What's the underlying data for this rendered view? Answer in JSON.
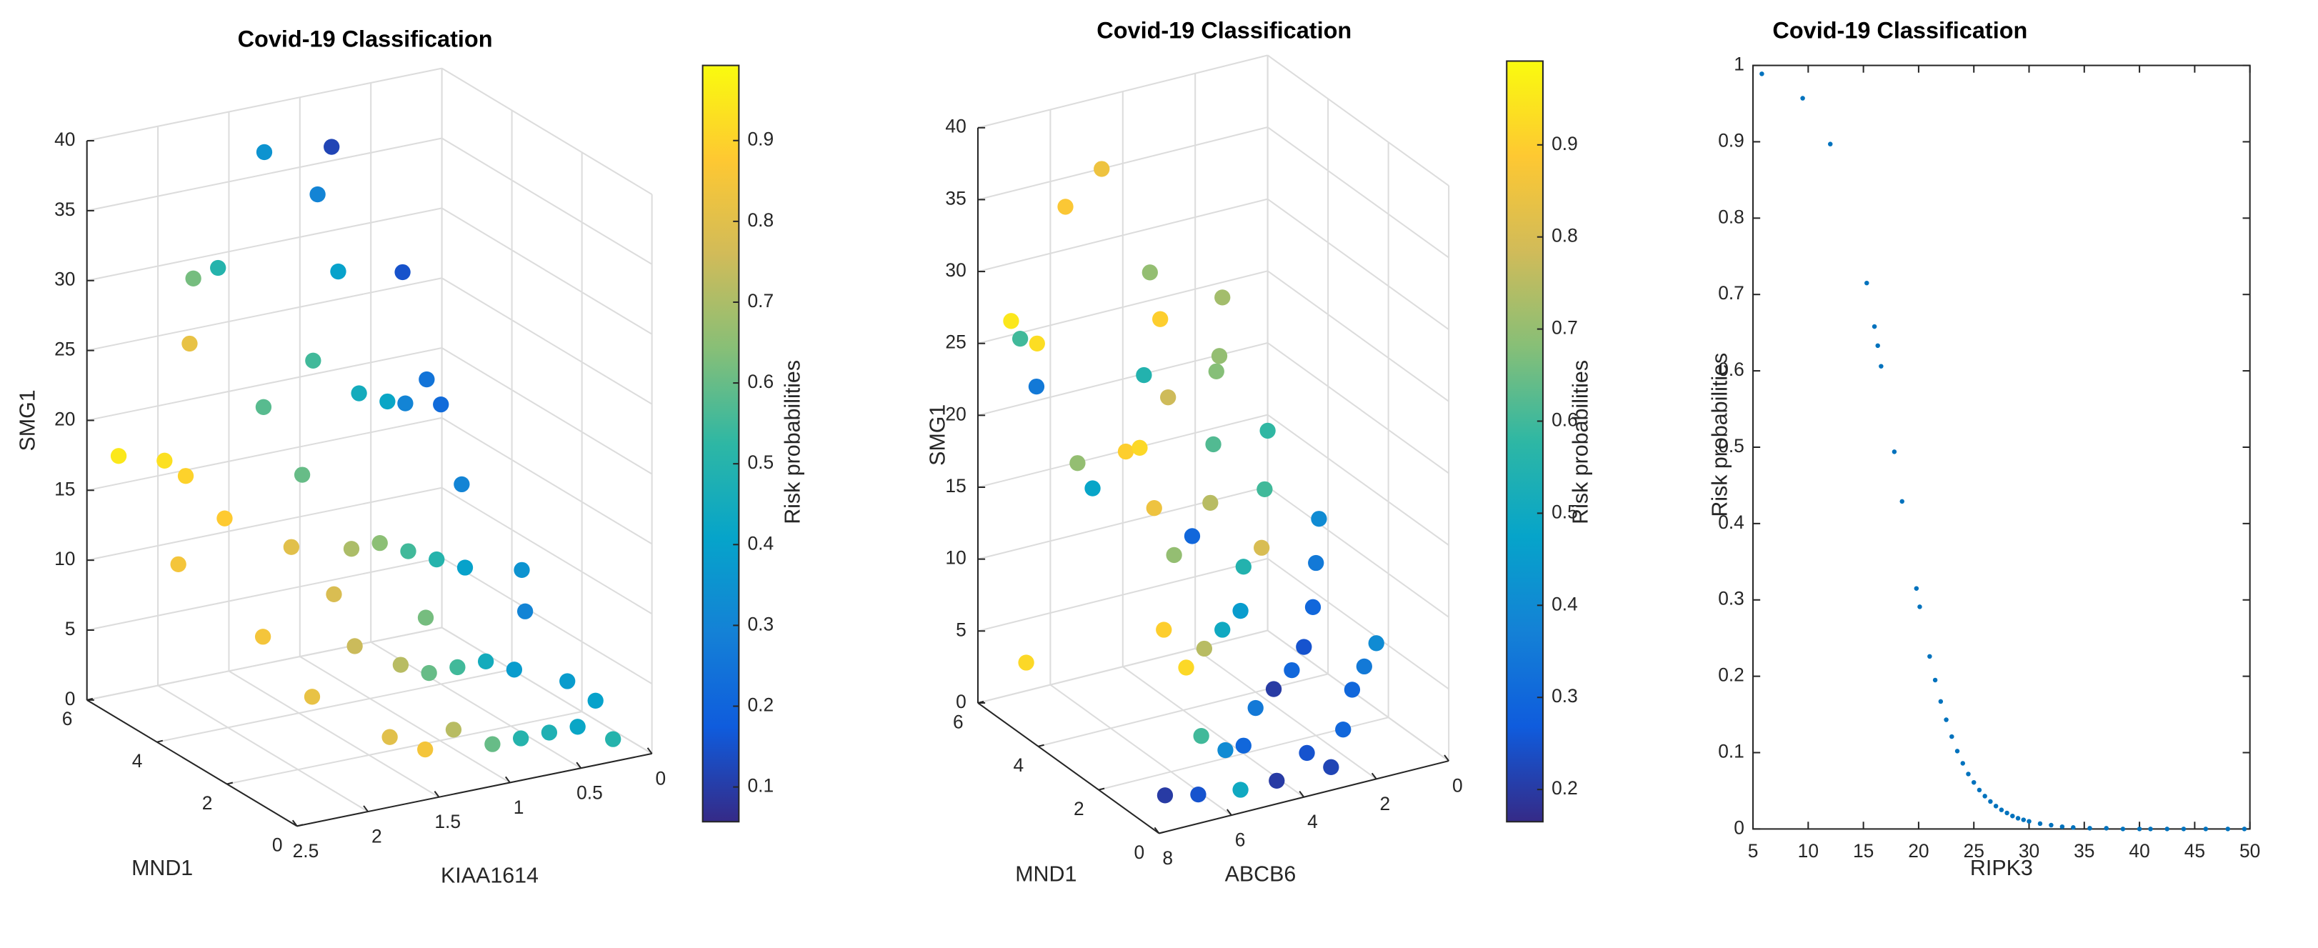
{
  "chart_data": [
    {
      "type": "scatter3d",
      "title": "Covid-19 Classification",
      "xlabel": "KIAA1614",
      "ylabel": "MND1",
      "zlabel": "SMG1",
      "colorbar_label": "Risk probabilities",
      "colormap": "parula",
      "grid": true,
      "x": [
        2.4,
        2.2,
        2.1,
        1.9,
        1.8,
        1.7,
        1.3,
        0.9,
        0.9,
        1.1,
        1.4,
        1.2,
        1.0,
        0.8,
        0.6,
        0.4,
        0.5,
        0.6,
        1.6,
        1.8,
        1.5,
        1.3,
        1.1,
        0.9,
        0.7,
        2.0,
        1.9,
        1.6,
        1.4,
        1.2,
        1.0,
        0.8,
        0.6,
        0.4,
        0.3,
        1.6,
        1.4,
        1.2,
        1.0,
        0.8,
        0.6,
        0.4,
        0.2,
        0.2,
        0.3,
        1.7,
        2.3,
        1.9,
        1.5,
        1.1
      ],
      "y": [
        5.5,
        5,
        4.8,
        5.5,
        5.8,
        5.5,
        5.8,
        5.5,
        5.9,
        4.5,
        4,
        3.5,
        3.5,
        3.8,
        4,
        5.5,
        4,
        3,
        3.5,
        3,
        2.5,
        2.5,
        2.5,
        2.5,
        2.5,
        3,
        2,
        2,
        1.5,
        1.5,
        1.5,
        1.5,
        1.5,
        2,
        2.5,
        1,
        0.8,
        0.8,
        0.5,
        0.5,
        0.5,
        0.5,
        0.8,
        0.3,
        1.2,
        4.2,
        4.2,
        4.5,
        3,
        2
      ],
      "z": [
        18,
        18,
        17,
        25,
        29,
        30,
        37,
        37,
        33,
        30,
        25,
        23,
        22,
        21,
        22,
        27,
        20,
        16,
        18,
        14,
        14,
        14,
        13,
        12,
        11,
        8,
        5,
        8,
        7,
        6,
        6,
        6,
        5,
        8,
        10,
        3,
        2,
        3,
        2,
        2,
        2,
        2,
        3,
        1,
        4,
        22,
        12,
        14,
        10,
        9
      ],
      "c": [
        0.95,
        0.93,
        0.9,
        0.82,
        0.62,
        0.5,
        0.35,
        0.12,
        0.3,
        0.4,
        0.55,
        0.45,
        0.42,
        0.3,
        0.25,
        0.15,
        0.22,
        0.3,
        0.6,
        0.8,
        0.7,
        0.65,
        0.55,
        0.5,
        0.4,
        0.85,
        0.82,
        0.75,
        0.72,
        0.6,
        0.55,
        0.45,
        0.38,
        0.3,
        0.35,
        0.8,
        0.85,
        0.72,
        0.6,
        0.5,
        0.48,
        0.42,
        0.4,
        0.5,
        0.38,
        0.58,
        0.85,
        0.88,
        0.78,
        0.62
      ],
      "xlim": [
        0,
        2.5
      ],
      "xticks": [
        0,
        0.5,
        1,
        1.5,
        2,
        2.5
      ],
      "ylim": [
        0,
        6
      ],
      "yticks": [
        0,
        2,
        4,
        6
      ],
      "zlim": [
        0,
        40
      ],
      "zticks": [
        0,
        5,
        10,
        15,
        20,
        25,
        30,
        35,
        40
      ],
      "clim": [
        0.057,
        0.993
      ],
      "cticks": [
        0.1,
        0.2,
        0.3,
        0.4,
        0.5,
        0.6,
        0.7,
        0.8,
        0.9
      ]
    },
    {
      "type": "scatter3d",
      "title": "Covid-19 Classification",
      "xlabel": "ABCB6",
      "ylabel": "MND1",
      "zlabel": "SMG1",
      "colorbar_label": "Risk probabilities",
      "colormap": "parula",
      "grid": true,
      "x": [
        7.5,
        7.0,
        7.5,
        7.2,
        7.0,
        6.8,
        6.5,
        6.5,
        6.0,
        5.0,
        4.5,
        4.8,
        5.5,
        6.0,
        5.8,
        5.5,
        5.0,
        4.5,
        4.0,
        3.5,
        3.0,
        2.5,
        6.2,
        6.0,
        5.5,
        5.0,
        4.5,
        4.0,
        3.5,
        3.0,
        2.5,
        6.0,
        5.5,
        5.0,
        4.5,
        4.0,
        3.5,
        3.0,
        2.5,
        2.0,
        1.5,
        6.5,
        5.5,
        4.5,
        3.5,
        2.5,
        2.0,
        1.5,
        1.0,
        3.0,
        4.0,
        5.2
      ],
      "y": [
        5,
        1,
        5.5,
        5,
        5.8,
        5.5,
        4.5,
        4,
        5.5,
        5.5,
        4.5,
        3.8,
        3.5,
        3.5,
        2.8,
        2.5,
        2.5,
        2.5,
        3,
        3.5,
        4,
        4.5,
        2,
        1.5,
        1.5,
        1.5,
        1.5,
        2,
        2,
        2.5,
        3,
        1,
        0.8,
        0.8,
        1,
        1,
        1,
        1.2,
        1.5,
        2,
        2.5,
        0.5,
        0.3,
        0.3,
        0.5,
        0.5,
        0.8,
        1,
        1.2,
        0.3,
        4.5,
        4
      ],
      "z": [
        4,
        0.5,
        27,
        26,
        25,
        22,
        18,
        17,
        34,
        36,
        30,
        28,
        25,
        20,
        17,
        14,
        15,
        17,
        20,
        24,
        24,
        27,
        10,
        8,
        9,
        10,
        11,
        13,
        14,
        17,
        20,
        4,
        3,
        3,
        5,
        6,
        7,
        8,
        10,
        12,
        14,
        1,
        1,
        1,
        2,
        3,
        5,
        6,
        7,
        1,
        21,
        19
      ],
      "c": [
        0.92,
        0.2,
        0.95,
        0.93,
        0.6,
        0.35,
        0.7,
        0.48,
        0.88,
        0.85,
        0.7,
        0.9,
        0.55,
        0.9,
        0.85,
        0.7,
        0.3,
        0.75,
        0.62,
        0.68,
        0.7,
        0.72,
        0.9,
        0.92,
        0.75,
        0.5,
        0.45,
        0.55,
        0.8,
        0.6,
        0.58,
        0.6,
        0.4,
        0.3,
        0.35,
        0.2,
        0.3,
        0.25,
        0.3,
        0.35,
        0.4,
        0.25,
        0.5,
        0.2,
        0.25,
        0.3,
        0.3,
        0.35,
        0.4,
        0.22,
        0.78,
        0.92
      ],
      "xlim": [
        0,
        8
      ],
      "xticks": [
        0,
        2,
        4,
        6,
        8
      ],
      "ylim": [
        0,
        6
      ],
      "yticks": [
        0,
        2,
        4,
        6
      ],
      "zlim": [
        0,
        40
      ],
      "zticks": [
        0,
        5,
        10,
        15,
        20,
        25,
        30,
        35,
        40
      ],
      "clim": [
        0.165,
        0.991
      ],
      "cticks": [
        0.2,
        0.3,
        0.4,
        0.5,
        0.6,
        0.7,
        0.8,
        0.9
      ]
    },
    {
      "type": "scatter",
      "title": "Covid-19 Classification",
      "xlabel": "RIPK3",
      "ylabel": "Risk probabilities",
      "color": "#0072bd",
      "x": [
        5.8,
        9.5,
        12,
        15.3,
        16.0,
        16.3,
        16.6,
        17.8,
        18.5,
        19.8,
        20.1,
        21,
        21.5,
        22,
        22.5,
        23,
        23.5,
        24,
        24.5,
        25,
        25.5,
        26,
        26.5,
        27,
        27.5,
        28,
        28.5,
        29,
        29.5,
        30,
        31,
        32,
        33,
        34,
        35.5,
        37,
        38.5,
        40,
        41,
        42.5,
        44,
        46,
        48,
        49.5
      ],
      "y": [
        0.989,
        0.957,
        0.897,
        0.715,
        0.658,
        0.633,
        0.606,
        0.494,
        0.429,
        0.315,
        0.291,
        0.226,
        0.195,
        0.167,
        0.143,
        0.121,
        0.102,
        0.086,
        0.072,
        0.061,
        0.051,
        0.043,
        0.036,
        0.03,
        0.025,
        0.021,
        0.017,
        0.014,
        0.012,
        0.01,
        0.007,
        0.005,
        0.003,
        0.002,
        0.001,
        0.001,
        0,
        0,
        0,
        0,
        0,
        0,
        0,
        0
      ],
      "xlim": [
        5,
        50
      ],
      "xticks": [
        5,
        10,
        15,
        20,
        25,
        30,
        35,
        40,
        45,
        50
      ],
      "ylim": [
        0,
        1
      ],
      "yticks": [
        0,
        0.1,
        0.2,
        0.3,
        0.4,
        0.5,
        0.6,
        0.7,
        0.8,
        0.9,
        1
      ]
    }
  ]
}
